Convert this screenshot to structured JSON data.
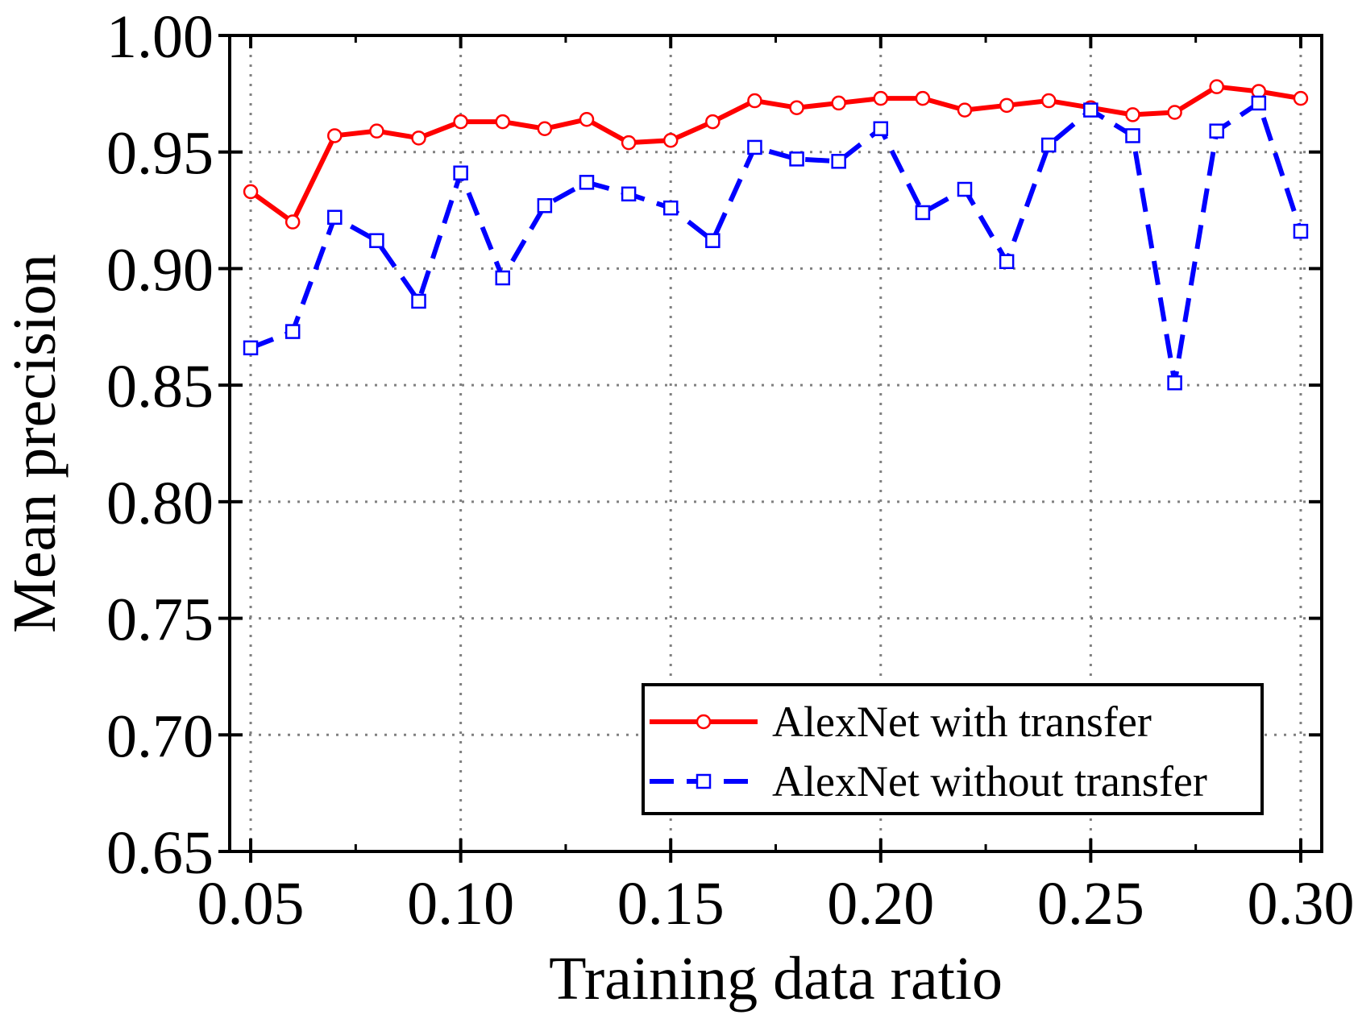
{
  "chart_data": {
    "type": "line",
    "title": "",
    "xlabel": "Training data ratio",
    "ylabel": "Mean precision",
    "xlim": [
      0.045,
      0.305
    ],
    "ylim": [
      0.65,
      1.0
    ],
    "xticks": [
      "0.05",
      "0.10",
      "0.15",
      "0.20",
      "0.25",
      "0.30"
    ],
    "xtick_values": [
      0.05,
      0.1,
      0.15,
      0.2,
      0.25,
      0.3
    ],
    "yticks": [
      "0.65",
      "0.70",
      "0.75",
      "0.80",
      "0.85",
      "0.90",
      "0.95",
      "1.00"
    ],
    "ytick_values": [
      0.65,
      0.7,
      0.75,
      0.8,
      0.85,
      0.9,
      0.95,
      1.0
    ],
    "grid": true,
    "legend_position": "bottom-right",
    "x": [
      0.05,
      0.06,
      0.07,
      0.08,
      0.09,
      0.1,
      0.11,
      0.12,
      0.13,
      0.14,
      0.15,
      0.16,
      0.17,
      0.18,
      0.19,
      0.2,
      0.21,
      0.22,
      0.23,
      0.24,
      0.25,
      0.26,
      0.27,
      0.28,
      0.29,
      0.3
    ],
    "series": [
      {
        "name": "AlexNet with transfer",
        "color": "#ff0000",
        "dash": "solid",
        "marker": "circle",
        "values": [
          0.933,
          0.92,
          0.957,
          0.959,
          0.956,
          0.963,
          0.963,
          0.96,
          0.964,
          0.954,
          0.955,
          0.963,
          0.972,
          0.969,
          0.971,
          0.973,
          0.973,
          0.968,
          0.97,
          0.972,
          0.969,
          0.966,
          0.967,
          0.978,
          0.976,
          0.973
        ]
      },
      {
        "name": "AlexNet without transfer",
        "color": "#0000ff",
        "dash": "dashed",
        "marker": "square",
        "values": [
          0.866,
          0.873,
          0.922,
          0.912,
          0.886,
          0.941,
          0.896,
          0.927,
          0.937,
          0.932,
          0.926,
          0.912,
          0.952,
          0.947,
          0.946,
          0.96,
          0.924,
          0.934,
          0.903,
          0.953,
          0.968,
          0.957,
          0.851,
          0.959,
          0.971,
          0.916
        ]
      }
    ]
  }
}
